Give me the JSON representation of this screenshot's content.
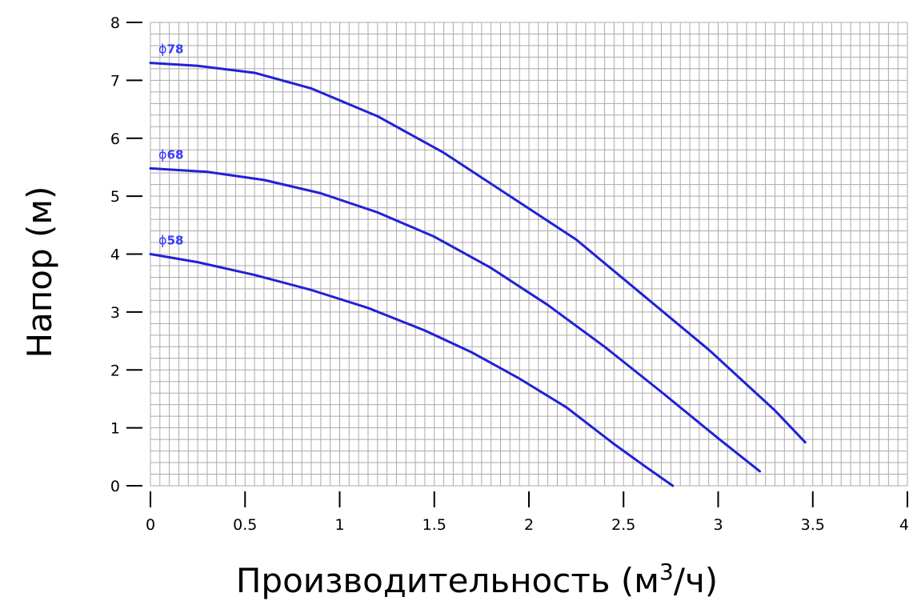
{
  "chart_data": {
    "type": "line",
    "title": "",
    "xlabel": "Производительность (м",
    "xlabel_sup": "3",
    "xlabel_tail": "/ч)",
    "ylabel": "Напор (м)",
    "xlim": [
      0,
      4
    ],
    "ylim": [
      0,
      8
    ],
    "x_ticks": [
      0,
      0.5,
      1,
      1.5,
      2,
      2.5,
      3,
      3.5,
      4
    ],
    "x_tick_labels": [
      "0",
      "0.5",
      "1",
      "1.5",
      "2",
      "2.5",
      "3",
      "3.5",
      "4"
    ],
    "y_ticks": [
      0,
      1,
      2,
      3,
      4,
      5,
      6,
      7,
      8
    ],
    "y_tick_labels": [
      "0",
      "1",
      "2",
      "3",
      "4",
      "5",
      "6",
      "7",
      "8"
    ],
    "grid": true,
    "grid_x_step": 0.05,
    "grid_y_step": 0.2,
    "legend": "inline labels at curve starts",
    "colors": {
      "series": "#2121d6",
      "label": "#3a3aff",
      "grid": "#aaaaaa",
      "axis": "#000000"
    },
    "series": [
      {
        "name": "ϕ78",
        "label_prefix": "ϕ",
        "label_number": "78",
        "x": [
          0,
          0.25,
          0.55,
          0.85,
          1.2,
          1.55,
          1.9,
          2.25,
          2.6,
          2.95,
          3.3,
          3.46
        ],
        "y": [
          7.3,
          7.25,
          7.13,
          6.86,
          6.38,
          5.75,
          5.0,
          4.25,
          3.3,
          2.35,
          1.3,
          0.75
        ]
      },
      {
        "name": "ϕ68",
        "label_prefix": "ϕ",
        "label_number": "68",
        "x": [
          0,
          0.3,
          0.6,
          0.9,
          1.2,
          1.5,
          1.8,
          2.1,
          2.4,
          2.7,
          3.0,
          3.22
        ],
        "y": [
          5.48,
          5.42,
          5.28,
          5.05,
          4.72,
          4.3,
          3.76,
          3.12,
          2.4,
          1.62,
          0.82,
          0.25
        ]
      },
      {
        "name": "ϕ58",
        "label_prefix": "ϕ",
        "label_number": "58",
        "x": [
          0,
          0.25,
          0.55,
          0.85,
          1.15,
          1.45,
          1.7,
          1.95,
          2.2,
          2.45,
          2.62,
          2.76
        ],
        "y": [
          4.0,
          3.86,
          3.64,
          3.38,
          3.07,
          2.68,
          2.3,
          1.85,
          1.35,
          0.72,
          0.32,
          0.0
        ]
      }
    ]
  }
}
